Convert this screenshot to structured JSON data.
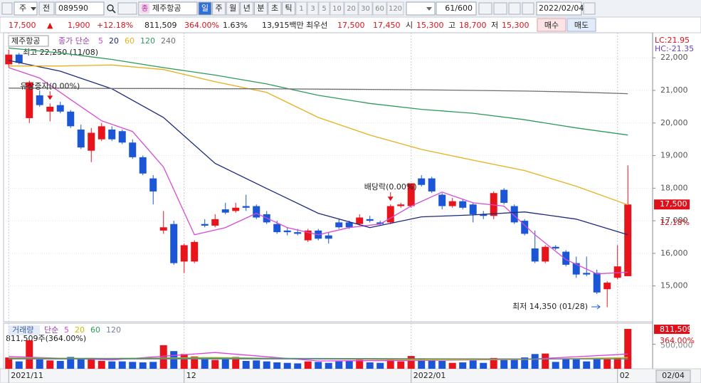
{
  "toolbar": {
    "market": "주",
    "prev": "전",
    "code": "089590",
    "name_tag": "종",
    "name": "제주항공",
    "periods": [
      "일",
      "주",
      "월",
      "년",
      "분",
      "초",
      "틱"
    ],
    "intervals": [
      "1",
      "3",
      "5",
      "10",
      "20",
      "30",
      "60",
      "120"
    ],
    "count": "61/600",
    "date": "2022/02/04"
  },
  "quote": {
    "price": "17,500",
    "arrow": "▲",
    "change": "1,900",
    "change_pct": "+12.18%",
    "volume": "811,509",
    "volume_pct": "364.00%",
    "turnover": "1.63%",
    "amount": "13,915백만",
    "best_label": "최우선",
    "ask": "17,500",
    "bid": "17,450",
    "open_label": "시",
    "open": "15,300",
    "high_label": "고",
    "high": "18,700",
    "low_label": "저",
    "low": "15,300",
    "buy": "매수",
    "sell": "매도"
  },
  "chart_data": {
    "type": "candlestick",
    "title": "제주항공",
    "legend_label": "종가 단순",
    "open": [
      21800,
      22100,
      20150,
      20850,
      20350,
      20550,
      20350,
      19800,
      19150,
      19500,
      19800,
      19750,
      19400,
      18950,
      18300,
      16700,
      16900,
      15750,
      15750,
      16900,
      16850,
      17350,
      17300,
      17450,
      17450,
      17200,
      16900,
      16700,
      16650,
      16400,
      16700,
      16550,
      16950,
      16950,
      16900,
      17050,
      16950,
      16950,
      17450,
      17450,
      18300,
      18300,
      17800,
      17450,
      17600,
      17500,
      17200,
      17150,
      17950,
      17450,
      17000,
      16150,
      15750,
      16200,
      16050,
      15700,
      15400,
      15400,
      14900,
      15250,
      15300
    ],
    "high": [
      22250,
      22150,
      21300,
      21000,
      20600,
      20650,
      20400,
      19950,
      19850,
      20000,
      19900,
      19800,
      19500,
      19000,
      18400,
      17300,
      17000,
      16300,
      16400,
      17050,
      17200,
      17550,
      17550,
      17800,
      17500,
      17300,
      17000,
      16800,
      16750,
      16750,
      16750,
      16650,
      17050,
      17000,
      17200,
      17150,
      17000,
      17500,
      17550,
      18150,
      18400,
      18350,
      17850,
      17700,
      17650,
      17550,
      17300,
      17900,
      18000,
      17500,
      17050,
      16700,
      16250,
      16250,
      16100,
      15900,
      15900,
      15500,
      15150,
      16250,
      18700
    ],
    "low": [
      21700,
      21800,
      20000,
      20500,
      20050,
      20300,
      19850,
      19200,
      18800,
      19450,
      19450,
      19350,
      18900,
      18400,
      17500,
      16600,
      15650,
      15400,
      15700,
      16800,
      16800,
      17200,
      17250,
      17300,
      17050,
      16900,
      16600,
      16550,
      16550,
      16350,
      16400,
      16300,
      16750,
      16750,
      16850,
      16950,
      16850,
      16900,
      17400,
      17400,
      18050,
      17850,
      17350,
      17400,
      17350,
      16950,
      17050,
      17050,
      17500,
      16900,
      16550,
      15700,
      15700,
      16100,
      15600,
      15250,
      15300,
      14750,
      14350,
      15200,
      15300
    ],
    "close": [
      22100,
      21850,
      21250,
      20550,
      20500,
      20350,
      19900,
      19250,
      19700,
      19900,
      19500,
      19400,
      18950,
      18450,
      17900,
      16800,
      15700,
      16250,
      16350,
      16850,
      17050,
      17250,
      17400,
      17400,
      17100,
      16950,
      16650,
      16650,
      16600,
      16700,
      16450,
      16450,
      16800,
      16800,
      17100,
      17000,
      16900,
      17450,
      17500,
      18150,
      18100,
      17900,
      17450,
      17600,
      17400,
      17200,
      17150,
      17850,
      17550,
      16950,
      16600,
      15750,
      16200,
      16150,
      15650,
      15350,
      15350,
      14800,
      15100,
      15600,
      17500
    ],
    "up_color": "#e8141c",
    "down_color": "#1a56d6",
    "xlim": [
      -0.5,
      62.4
    ],
    "ylim": [
      13900,
      22770
    ],
    "yticks": [
      {
        "value": 15000,
        "label": "15,000"
      },
      {
        "value": 16000,
        "label": "16,000"
      },
      {
        "value": 17000,
        "label": "17,000"
      },
      {
        "value": 18000,
        "label": "18,000"
      },
      {
        "value": 19000,
        "label": "19,000"
      },
      {
        "value": 20000,
        "label": "20,000"
      },
      {
        "value": 21000,
        "label": "21,000"
      },
      {
        "value": 22000,
        "label": "22,000"
      }
    ],
    "grid": true,
    "moving_averages": [
      {
        "name": "5",
        "color": "#d54bd5",
        "x": [
          0,
          3,
          6,
          9,
          12,
          15,
          18,
          21,
          24,
          27,
          30,
          33,
          36,
          39,
          42,
          45,
          48,
          51,
          54,
          57,
          60
        ],
        "values": [
          21700,
          21380,
          20720,
          20070,
          19740,
          18650,
          16570,
          16790,
          17230,
          16790,
          16570,
          16790,
          16900,
          17450,
          17880,
          17550,
          17450,
          16570,
          15810,
          15370,
          15420
        ]
      },
      {
        "name": "20",
        "color": "#1c2a7c",
        "x": [
          0,
          5,
          10,
          15,
          20,
          25,
          30,
          35,
          40,
          45,
          50,
          55,
          60
        ],
        "values": [
          21920,
          21590,
          21050,
          20170,
          18760,
          17990,
          17230,
          16790,
          17120,
          17180,
          17270,
          17050,
          16570
        ]
      },
      {
        "name": "60",
        "color": "#e6b019",
        "x": [
          0,
          5,
          10,
          15,
          20,
          25,
          30,
          35,
          40,
          45,
          50,
          55,
          60
        ],
        "values": [
          21750,
          21750,
          21780,
          21640,
          21270,
          20940,
          20170,
          19630,
          19190,
          18860,
          18540,
          18060,
          17490
        ]
      },
      {
        "name": "120",
        "color": "#2e9a5a",
        "x": [
          0,
          5,
          10,
          15,
          20,
          25,
          30,
          35,
          40,
          45,
          50,
          55,
          60
        ],
        "values": [
          22300,
          22150,
          21950,
          21700,
          21470,
          21200,
          20850,
          20600,
          20420,
          20300,
          20100,
          19850,
          19630
        ]
      },
      {
        "name": "240",
        "color": "#707070",
        "x": [
          0,
          5,
          10,
          15,
          20,
          25,
          30,
          35,
          40,
          45,
          50,
          55,
          60
        ],
        "values": [
          21070,
          21070,
          21060,
          21060,
          21050,
          21050,
          21040,
          21030,
          21020,
          21000,
          20980,
          20950,
          20900
        ]
      }
    ],
    "x_labels": [
      {
        "value": 0,
        "label": "2021/11"
      },
      {
        "value": 17,
        "label": "12"
      },
      {
        "value": 39,
        "label": "2022/01"
      },
      {
        "value": 59,
        "label": "02"
      }
    ],
    "cursor_date": "02/04",
    "annotations": {
      "high": "최고 22,250 (11/08)",
      "low": "최저 14,350 (01/28)"
    },
    "events": [
      {
        "label": "유상증자(0.00%)",
        "x": 4
      },
      {
        "label": "배당락(0.00%)",
        "x": 37
      }
    ],
    "lc": "LC:21.95",
    "hc": "HC:-21.35",
    "last_label": {
      "value": 17500,
      "label": "17,500"
    },
    "last_change": "12.18%",
    "volume": {
      "title": "거래량",
      "legend_label": "단순",
      "header": "811,509주(364.00%)",
      "values": [
        230000,
        150000,
        580000,
        190000,
        170000,
        160000,
        240000,
        200000,
        220000,
        160000,
        150000,
        150000,
        140000,
        130000,
        140000,
        480000,
        360000,
        300000,
        250000,
        200000,
        180000,
        220000,
        240000,
        160000,
        170000,
        150000,
        130000,
        120000,
        110000,
        150000,
        140000,
        120000,
        150000,
        160000,
        180000,
        130000,
        120000,
        200000,
        150000,
        260000,
        200000,
        180000,
        160000,
        120000,
        130000,
        170000,
        120000,
        220000,
        180000,
        200000,
        230000,
        300000,
        310000,
        140000,
        200000,
        190000,
        150000,
        200000,
        200000,
        220000,
        811509
      ],
      "ylim": [
        0,
        870000
      ],
      "yticks": [
        {
          "value": 500000,
          "label": "500,000"
        }
      ],
      "last_label": {
        "value": 811509,
        "label": "811,509"
      },
      "last_pct": "364.00%",
      "moving_averages": [
        {
          "name": "5",
          "color": "#e040e0",
          "x": [
            0,
            10,
            20,
            30,
            40,
            50,
            60
          ],
          "values": [
            250000,
            180000,
            330000,
            160000,
            170000,
            190000,
            300000
          ]
        },
        {
          "name": "20",
          "color": "#c8c000",
          "x": [
            0,
            10,
            20,
            30,
            40,
            50,
            60
          ],
          "values": [
            220000,
            210000,
            230000,
            200000,
            180000,
            190000,
            230000
          ]
        },
        {
          "name": "60",
          "color": "#2e9a5a",
          "x": [
            0,
            10,
            20,
            30,
            40,
            50,
            60
          ],
          "values": [
            210000,
            210000,
            215000,
            210000,
            205000,
            200000,
            205000
          ]
        },
        {
          "name": "120",
          "color": "#7080a0",
          "x": [
            0,
            10,
            20,
            30,
            40,
            50,
            60
          ],
          "values": [
            200000,
            200000,
            200000,
            200000,
            200000,
            200000,
            200000
          ]
        }
      ]
    }
  }
}
